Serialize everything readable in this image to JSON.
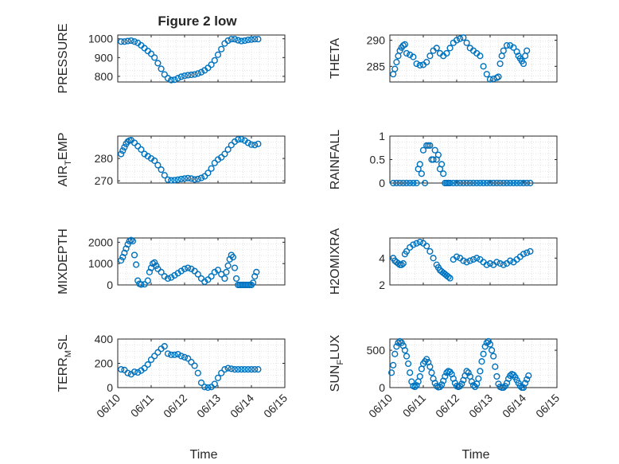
{
  "figure_title": "Figure 2 low",
  "colors": {
    "marker": "#0072BD",
    "axis": "#262626",
    "grid": "#dcdcdc",
    "background": "#ffffff"
  },
  "chart_data": [
    {
      "type": "scatter",
      "ylabel": "PRESSURE",
      "xlabel": "",
      "grid": true,
      "minor_grid": true,
      "xlim": [
        10,
        15
      ],
      "ylim": [
        770,
        1020
      ],
      "yticks": [
        800,
        900,
        1000
      ],
      "show_xticklabels": false,
      "x": [
        10.1,
        10.2,
        10.3,
        10.4,
        10.5,
        10.6,
        10.7,
        10.8,
        10.9,
        11.0,
        11.1,
        11.2,
        11.3,
        11.4,
        11.5,
        11.6,
        11.7,
        11.8,
        11.9,
        12.0,
        12.1,
        12.2,
        12.3,
        12.4,
        12.5,
        12.6,
        12.7,
        12.8,
        12.9,
        13.0,
        13.1,
        13.2,
        13.3,
        13.4,
        13.5,
        13.6,
        13.7,
        13.8,
        13.9,
        14.0,
        14.1,
        14.2
      ],
      "y": [
        985,
        985,
        988,
        990,
        985,
        978,
        965,
        950,
        935,
        920,
        900,
        870,
        840,
        810,
        790,
        780,
        782,
        790,
        798,
        803,
        806,
        808,
        810,
        815,
        822,
        832,
        845,
        862,
        885,
        915,
        945,
        975,
        990,
        998,
        998,
        992,
        988,
        990,
        994,
        996,
        998,
        998
      ]
    },
    {
      "type": "scatter",
      "ylabel": "THETA",
      "xlabel": "",
      "grid": true,
      "minor_grid": true,
      "xlim": [
        10,
        15
      ],
      "ylim": [
        282,
        291
      ],
      "yticks": [
        285,
        290
      ],
      "show_xticklabels": false,
      "x": [
        10.1,
        10.15,
        10.2,
        10.25,
        10.3,
        10.35,
        10.4,
        10.45,
        10.5,
        10.6,
        10.7,
        10.8,
        10.9,
        11.0,
        11.1,
        11.2,
        11.3,
        11.4,
        11.5,
        11.6,
        11.7,
        11.8,
        11.9,
        12.0,
        12.1,
        12.2,
        12.3,
        12.4,
        12.5,
        12.6,
        12.7,
        12.8,
        12.9,
        13.0,
        13.1,
        13.2,
        13.25,
        13.3,
        13.35,
        13.4,
        13.5,
        13.6,
        13.7,
        13.8,
        13.85,
        13.9,
        13.95,
        14.0,
        14.05,
        14.1
      ],
      "y": [
        283.5,
        284.5,
        285.8,
        287,
        288,
        288.6,
        289,
        289.2,
        287.5,
        287.2,
        286.8,
        285.5,
        285.2,
        285.3,
        285.8,
        287,
        288,
        288.5,
        287.5,
        287,
        287.5,
        288.5,
        289.5,
        290,
        290.3,
        290.5,
        289.5,
        288.5,
        288,
        287.5,
        287,
        285,
        283.5,
        282.5,
        282.6,
        282.8,
        283,
        285.5,
        287,
        288,
        289,
        289,
        288.6,
        287.8,
        287,
        286.5,
        286,
        285.5,
        287,
        288
      ]
    },
    {
      "type": "scatter",
      "ylabel": "AIR_TEMP",
      "xlabel": "",
      "grid": true,
      "minor_grid": true,
      "xlim": [
        10,
        15
      ],
      "ylim": [
        269,
        290
      ],
      "yticks": [
        270,
        280
      ],
      "show_xticklabels": false,
      "x": [
        10.1,
        10.15,
        10.2,
        10.25,
        10.3,
        10.35,
        10.4,
        10.5,
        10.6,
        10.7,
        10.8,
        10.9,
        11.0,
        11.1,
        11.2,
        11.3,
        11.4,
        11.5,
        11.6,
        11.7,
        11.8,
        11.9,
        12.0,
        12.1,
        12.2,
        12.3,
        12.4,
        12.5,
        12.6,
        12.7,
        12.8,
        12.9,
        13.0,
        13.1,
        13.2,
        13.3,
        13.4,
        13.5,
        13.6,
        13.7,
        13.8,
        13.9,
        14.0,
        14.1,
        14.2
      ],
      "y": [
        282,
        283.5,
        285,
        286.5,
        287.5,
        288,
        288.2,
        287,
        285.5,
        284,
        282,
        281,
        280,
        279,
        277,
        275,
        272.5,
        270.5,
        270.2,
        270.3,
        270.5,
        270.8,
        271,
        271.2,
        271,
        270.6,
        270.8,
        271.3,
        272,
        273.5,
        275.5,
        278,
        279.5,
        280.5,
        282,
        284,
        286,
        287.5,
        288.5,
        288.6,
        288,
        287,
        286.2,
        286,
        286.5
      ]
    },
    {
      "type": "scatter",
      "ylabel": "RAINFALL",
      "xlabel": "",
      "grid": true,
      "minor_grid": true,
      "xlim": [
        10,
        15
      ],
      "ylim": [
        0,
        1
      ],
      "yticks": [
        0,
        0.5,
        1
      ],
      "ytick_labels": [
        "0",
        "0.5",
        "1"
      ],
      "show_xticklabels": false,
      "x": [
        10.1,
        10.2,
        10.3,
        10.4,
        10.5,
        10.6,
        10.7,
        10.8,
        10.85,
        10.9,
        10.95,
        11.0,
        11.05,
        11.1,
        11.15,
        11.2,
        11.25,
        11.3,
        11.35,
        11.4,
        11.45,
        11.5,
        11.55,
        11.6,
        11.65,
        11.7,
        11.75,
        11.8,
        11.9,
        12.0,
        12.1,
        12.2,
        12.3,
        12.4,
        12.5,
        12.6,
        12.7,
        12.8,
        12.9,
        13.0,
        13.1,
        13.2,
        13.3,
        13.4,
        13.5,
        13.6,
        13.7,
        13.8,
        13.9,
        14.0,
        14.1,
        14.2
      ],
      "y": [
        0,
        0,
        0,
        0,
        0,
        0,
        0,
        0,
        0.3,
        0.4,
        0.2,
        0.7,
        0,
        0.8,
        0.8,
        0.8,
        0.5,
        0.5,
        0.7,
        0.5,
        0.6,
        0.3,
        0.4,
        0.2,
        0,
        0,
        0,
        0,
        0,
        0,
        0,
        0,
        0,
        0,
        0,
        0,
        0,
        0,
        0,
        0,
        0,
        0,
        0,
        0,
        0,
        0,
        0,
        0,
        0,
        0,
        0,
        0
      ]
    },
    {
      "type": "scatter",
      "ylabel": "MIXDEPTH",
      "xlabel": "",
      "grid": true,
      "minor_grid": true,
      "xlim": [
        10,
        15
      ],
      "ylim": [
        0,
        2200
      ],
      "yticks": [
        0,
        1000,
        2000
      ],
      "show_xticklabels": false,
      "x": [
        10.1,
        10.15,
        10.2,
        10.25,
        10.3,
        10.35,
        10.4,
        10.45,
        10.5,
        10.55,
        10.6,
        10.65,
        10.7,
        10.8,
        10.9,
        10.95,
        11.0,
        11.05,
        11.1,
        11.15,
        11.2,
        11.3,
        11.4,
        11.5,
        11.6,
        11.7,
        11.8,
        11.9,
        12.0,
        12.1,
        12.2,
        12.3,
        12.4,
        12.5,
        12.6,
        12.7,
        12.8,
        12.9,
        13.0,
        13.1,
        13.2,
        13.25,
        13.3,
        13.35,
        13.4,
        13.45,
        13.5,
        13.55,
        13.6,
        13.65,
        13.7,
        13.75,
        13.8,
        13.85,
        13.9,
        13.95,
        14.0,
        14.05,
        14.1,
        14.15
      ],
      "y": [
        1150,
        1300,
        1500,
        1700,
        1900,
        2050,
        2100,
        2050,
        1400,
        950,
        200,
        50,
        20,
        30,
        200,
        600,
        800,
        1000,
        1050,
        900,
        750,
        600,
        400,
        300,
        350,
        450,
        550,
        650,
        750,
        800,
        750,
        650,
        500,
        300,
        150,
        250,
        400,
        600,
        700,
        500,
        300,
        600,
        900,
        1200,
        1400,
        1300,
        800,
        300,
        0,
        0,
        0,
        0,
        0,
        0,
        0,
        0,
        0,
        100,
        400,
        600
      ]
    },
    {
      "type": "scatter",
      "ylabel": "H2OMIXRA",
      "xlabel": "",
      "grid": true,
      "minor_grid": true,
      "xlim": [
        10,
        15
      ],
      "ylim": [
        2,
        5.5
      ],
      "yticks": [
        2,
        4
      ],
      "show_xticklabels": false,
      "x": [
        10.1,
        10.15,
        10.2,
        10.25,
        10.3,
        10.35,
        10.4,
        10.45,
        10.5,
        10.6,
        10.7,
        10.8,
        10.9,
        11.0,
        11.1,
        11.2,
        11.3,
        11.4,
        11.45,
        11.5,
        11.55,
        11.6,
        11.65,
        11.7,
        11.75,
        11.8,
        11.9,
        12.0,
        12.1,
        12.2,
        12.3,
        12.4,
        12.5,
        12.6,
        12.7,
        12.8,
        12.9,
        13.0,
        13.1,
        13.2,
        13.3,
        13.4,
        13.5,
        13.6,
        13.7,
        13.8,
        13.9,
        14.0,
        14.1,
        14.2
      ],
      "y": [
        4,
        3.8,
        3.7,
        3.6,
        3.5,
        3.5,
        3.6,
        4.3,
        4.5,
        4.8,
        5,
        5.1,
        5.2,
        5.1,
        4.9,
        4.5,
        4,
        3.5,
        3.3,
        3.1,
        3,
        2.9,
        2.8,
        2.7,
        2.6,
        2.5,
        3.9,
        4.1,
        4,
        3.8,
        3.7,
        3.8,
        3.9,
        4,
        3.9,
        3.7,
        3.5,
        3.6,
        3.5,
        3.7,
        3.6,
        3.5,
        3.6,
        3.8,
        3.7,
        3.9,
        4.1,
        4.3,
        4.4,
        4.5
      ]
    },
    {
      "type": "scatter",
      "ylabel": "TERR_MSL",
      "xlabel": "Time",
      "grid": true,
      "minor_grid": true,
      "xlim": [
        10,
        15
      ],
      "ylim": [
        0,
        400
      ],
      "yticks": [
        0,
        200,
        400
      ],
      "show_xticklabels": true,
      "xticks": [
        10,
        11,
        12,
        13,
        14,
        15
      ],
      "xtick_labels": [
        "06/10",
        "06/11",
        "06/12",
        "06/13",
        "06/14",
        "06/15"
      ],
      "x": [
        10.1,
        10.2,
        10.3,
        10.4,
        10.5,
        10.6,
        10.7,
        10.8,
        10.9,
        11.0,
        11.1,
        11.2,
        11.3,
        11.4,
        11.5,
        11.6,
        11.7,
        11.8,
        11.9,
        12.0,
        12.1,
        12.2,
        12.3,
        12.4,
        12.5,
        12.6,
        12.7,
        12.8,
        12.9,
        13.0,
        13.1,
        13.2,
        13.3,
        13.4,
        13.5,
        13.6,
        13.7,
        13.8,
        13.9,
        14.0,
        14.1,
        14.2
      ],
      "y": [
        150,
        145,
        120,
        110,
        130,
        125,
        140,
        160,
        190,
        230,
        260,
        290,
        320,
        340,
        280,
        270,
        270,
        275,
        260,
        250,
        240,
        210,
        180,
        120,
        40,
        5,
        0,
        5,
        30,
        80,
        120,
        150,
        160,
        155,
        150,
        150,
        150,
        150,
        150,
        150,
        150,
        150
      ]
    },
    {
      "type": "scatter",
      "ylabel": "SUN_FLUX",
      "xlabel": "Time",
      "grid": true,
      "minor_grid": true,
      "xlim": [
        10,
        15
      ],
      "ylim": [
        0,
        650
      ],
      "yticks": [
        0,
        500
      ],
      "show_xticklabels": true,
      "xticks": [
        10,
        11,
        12,
        13,
        14,
        15
      ],
      "xtick_labels": [
        "06/10",
        "06/11",
        "06/12",
        "06/13",
        "06/14",
        "06/15"
      ],
      "x": [
        10.05,
        10.1,
        10.15,
        10.2,
        10.25,
        10.3,
        10.35,
        10.4,
        10.45,
        10.5,
        10.55,
        10.6,
        10.65,
        10.7,
        10.75,
        10.8,
        10.85,
        10.9,
        10.95,
        11.0,
        11.05,
        11.1,
        11.15,
        11.2,
        11.25,
        11.3,
        11.35,
        11.4,
        11.45,
        11.5,
        11.55,
        11.6,
        11.65,
        11.7,
        11.75,
        11.8,
        11.85,
        11.9,
        11.95,
        12.0,
        12.05,
        12.1,
        12.15,
        12.2,
        12.25,
        12.3,
        12.35,
        12.4,
        12.45,
        12.5,
        12.55,
        12.6,
        12.65,
        12.7,
        12.75,
        12.8,
        12.85,
        12.9,
        12.95,
        13.0,
        13.05,
        13.1,
        13.15,
        13.2,
        13.25,
        13.3,
        13.35,
        13.4,
        13.45,
        13.5,
        13.55,
        13.6,
        13.65,
        13.7,
        13.75,
        13.8,
        13.85,
        13.9,
        13.95,
        14.0,
        14.05,
        14.1,
        14.15
      ],
      "y": [
        200,
        300,
        450,
        550,
        600,
        620,
        600,
        560,
        500,
        420,
        320,
        200,
        80,
        20,
        10,
        30,
        80,
        150,
        250,
        320,
        350,
        380,
        340,
        280,
        200,
        120,
        60,
        20,
        5,
        10,
        40,
        90,
        150,
        200,
        220,
        210,
        180,
        120,
        60,
        20,
        10,
        20,
        50,
        100,
        160,
        220,
        200,
        150,
        80,
        30,
        10,
        50,
        120,
        220,
        350,
        450,
        550,
        600,
        620,
        580,
        500,
        420,
        280,
        150,
        50,
        10,
        0,
        0,
        20,
        60,
        120,
        160,
        180,
        170,
        140,
        100,
        60,
        20,
        0,
        0,
        60,
        110,
        160
      ]
    }
  ]
}
